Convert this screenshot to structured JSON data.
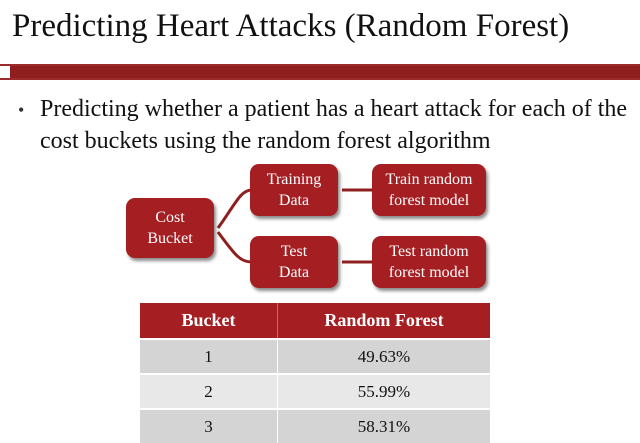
{
  "slide": {
    "title": "Predicting Heart Attacks (Random Forest)",
    "bullet": "Predicting whether a patient has a heart attack for each of the cost buckets using the random forest algorithm"
  },
  "diagram": {
    "root": "Cost\nBucket",
    "training": "Training\nData",
    "test": "Test\nData",
    "train_model": "Train random\nforest model",
    "test_model": "Test random\nforest model"
  },
  "table": {
    "headers": [
      "Bucket",
      "Random Forest"
    ],
    "rows": [
      [
        "1",
        "49.63%"
      ],
      [
        "2",
        "55.99%"
      ],
      [
        "3",
        "58.31%"
      ]
    ]
  },
  "colors": {
    "accent": "#a41e22",
    "rule": "#8f1f1f",
    "row_dark": "#d4d4d4",
    "row_light": "#e8e8e8"
  }
}
